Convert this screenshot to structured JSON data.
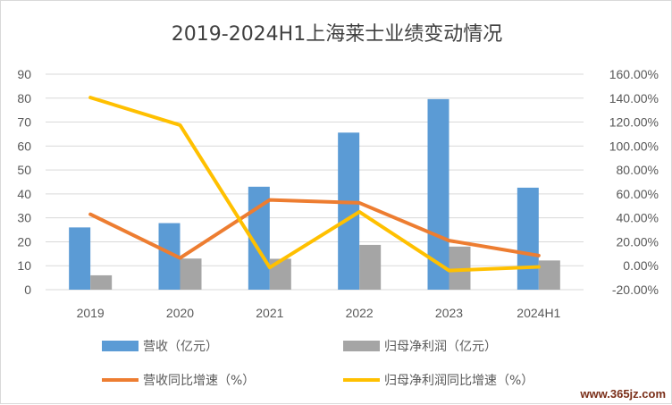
{
  "chart_data": {
    "type": "bar",
    "title": "2019-2024H1上海莱士业绩变动情况",
    "categories": [
      "2019",
      "2020",
      "2021",
      "2022",
      "2023",
      "2024H1"
    ],
    "bar_series": [
      {
        "name": "营收（亿元）",
        "color": "#5b9bd5",
        "values": [
          26.0,
          27.8,
          43.0,
          65.6,
          79.6,
          42.6
        ]
      },
      {
        "name": "归母净利润（亿元）",
        "color": "#a5a5a5",
        "values": [
          6.0,
          13.0,
          12.9,
          18.7,
          18.0,
          12.2
        ]
      }
    ],
    "line_series": [
      {
        "name": "营收同比增速（%）",
        "color": "#ed7d31",
        "values": [
          43.0,
          6.5,
          55.0,
          52.5,
          21.0,
          8.5
        ]
      },
      {
        "name": "归母净利润同比增速（%）",
        "color": "#ffc000",
        "values": [
          140.5,
          117.5,
          -1.5,
          45.0,
          -4.0,
          -1.0
        ]
      }
    ],
    "y_left": {
      "lim": [
        0,
        90
      ],
      "ticks": [
        "0",
        "10",
        "20",
        "30",
        "40",
        "50",
        "60",
        "70",
        "80",
        "90"
      ]
    },
    "y_right": {
      "lim": [
        -20,
        160
      ],
      "ticks": [
        "-20.00%",
        "0.00%",
        "20.00%",
        "40.00%",
        "60.00%",
        "80.00%",
        "100.00%",
        "120.00%",
        "140.00%",
        "160.00%"
      ]
    },
    "grid": true,
    "legend_position": "bottom"
  },
  "watermark": "www.365jz.com"
}
